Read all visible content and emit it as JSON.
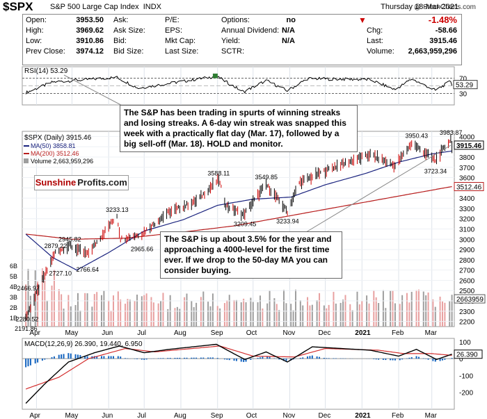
{
  "header": {
    "symbol": "$SPX",
    "name": "S&P 500 Large Cap Index",
    "exchange": "INDX",
    "copyright": "@ StockCharts.com",
    "date": "Thursday  18-Mar-2021",
    "pct_change": "-1.48%"
  },
  "quote": {
    "col1": [
      {
        "label": "Open:",
        "value": "3953.50"
      },
      {
        "label": "High:",
        "value": "3969.62"
      },
      {
        "label": "Low:",
        "value": "3910.86"
      },
      {
        "label": "Prev Close:",
        "value": "3974.12"
      }
    ],
    "col2": [
      {
        "label": "Ask:",
        "value": ""
      },
      {
        "label": "Ask Size:",
        "value": ""
      },
      {
        "label": "Bid:",
        "value": ""
      },
      {
        "label": "Bid Size:",
        "value": ""
      }
    ],
    "col3": [
      {
        "label": "P/E:",
        "value": ""
      },
      {
        "label": "EPS:",
        "value": ""
      },
      {
        "label": "Mkt Cap:",
        "value": ""
      },
      {
        "label": "Last Size:",
        "value": ""
      }
    ],
    "col4": [
      {
        "label": "Options:",
        "value": "no"
      },
      {
        "label": "Annual Dividend:",
        "value": "N/A"
      },
      {
        "label": "Yield:",
        "value": "N/A"
      },
      {
        "label": "SCTR:",
        "value": ""
      }
    ],
    "col5": [
      {
        "label": "Chg:",
        "value": "-58.66"
      },
      {
        "label": "Last:",
        "value": "3915.46"
      },
      {
        "label": "Volume:",
        "value": "2,663,959,296"
      }
    ]
  },
  "annotations": {
    "top": "The S&P has been trading in spurts of winning streaks and losing streaks. A 6-day win streak was snapped this week with a practically flat day (Mar. 17), followed by a big sell-off (Mar. 18). HOLD and monitor.",
    "bottom": "The S&P is up about 3.5% for the year and approaching a 4000-level for the first time ever. If we drop to the 50-day MA you can consider buying."
  },
  "logo": {
    "part1": "Sunshine",
    "part2": "Profits.com"
  },
  "colors": {
    "up": "#000000",
    "down": "#cc0000",
    "ma50": "#1a237e",
    "ma200": "#b71c1c",
    "volume_up": "#9e9e9e",
    "volume_down": "#e8a0a0",
    "macd": "#000000",
    "signal": "#d32f2f",
    "histogram": "#1565c0",
    "rsi": "#000000",
    "rsi_fill_over": "#2e7d32"
  },
  "chart_data": [
    {
      "type": "line",
      "title": "RSI(14) 53.29",
      "legend": [
        {
          "name": "RSI(14) 53.29"
        }
      ],
      "ylim": [
        0,
        100
      ],
      "reference_lines": [
        70,
        30
      ],
      "yticks": [
        70,
        30
      ],
      "last_value_label": "53.29",
      "key_points": [
        {
          "date": "2020-03-23",
          "value": 32
        },
        {
          "date": "2020-04-15",
          "value": 60
        },
        {
          "date": "2020-06-08",
          "value": 72
        },
        {
          "date": "2020-06-26",
          "value": 44
        },
        {
          "date": "2020-08-31",
          "value": 75
        },
        {
          "date": "2020-09-23",
          "value": 34
        },
        {
          "date": "2020-10-12",
          "value": 64
        },
        {
          "date": "2020-10-30",
          "value": 37
        },
        {
          "date": "2020-11-16",
          "value": 69
        },
        {
          "date": "2021-01-08",
          "value": 66
        },
        {
          "date": "2021-01-29",
          "value": 40
        },
        {
          "date": "2021-02-12",
          "value": 68
        },
        {
          "date": "2021-03-04",
          "value": 38
        },
        {
          "date": "2021-03-17",
          "value": 62
        },
        {
          "date": "2021-03-18",
          "value": 53.29
        }
      ]
    },
    {
      "type": "line",
      "title": "$SPX (Daily) 3915.46",
      "legend": [
        {
          "name": "$SPX (Daily) 3915.46"
        },
        {
          "name": "MA(50) 3858.81"
        },
        {
          "name": "MA(200) 3512.46"
        },
        {
          "name": "Volume 2,663,959,296"
        }
      ],
      "ylim": [
        2150,
        4050
      ],
      "yticks": [
        2200,
        2300,
        2400,
        2500,
        2600,
        2700,
        2800,
        2900,
        3000,
        3100,
        3200,
        3300,
        3400,
        3500,
        3600,
        3700,
        3800,
        3900,
        4000
      ],
      "volume_axis_labels": [
        "6B",
        "5B",
        "4B",
        "3B",
        "2B",
        "1B"
      ],
      "x_labels": [
        "Apr",
        "May",
        "Jun",
        "Jul",
        "Aug",
        "Sep",
        "Oct",
        "Nov",
        "Dec",
        "2021",
        "Feb",
        "Mar"
      ],
      "price_labels": [
        {
          "text": "3983.87",
          "date": "2021-03-17",
          "value": 3983.87
        },
        {
          "text": "3950.43",
          "date": "2021-02-16",
          "value": 3950.43
        },
        {
          "text": "3723.34",
          "date": "2021-03-04",
          "value": 3723.34
        },
        {
          "text": "3588.11",
          "date": "2020-09-02",
          "value": 3588.11
        },
        {
          "text": "3549.85",
          "date": "2020-10-12",
          "value": 3549.85
        },
        {
          "text": "3209.45",
          "date": "2020-09-24",
          "value": 3209.45
        },
        {
          "text": "3233.94",
          "date": "2020-10-30",
          "value": 3233.94
        },
        {
          "text": "3233.13",
          "date": "2020-06-08",
          "value": 3233.13
        },
        {
          "text": "2945.82",
          "date": "2020-04-29",
          "value": 2945.82
        },
        {
          "text": "2965.66",
          "date": "2020-06-29",
          "value": 2965.66
        },
        {
          "text": "2879.22",
          "date": "2020-04-17",
          "value": 2879.22
        },
        {
          "text": "2766.64",
          "date": "2020-05-14",
          "value": 2766.64
        },
        {
          "text": "2727.10",
          "date": "2020-04-21",
          "value": 2727.1
        },
        {
          "text": "2466.97",
          "date": "2020-03-25",
          "value": 2466.97
        },
        {
          "text": "2280.52",
          "date": "2020-03-24",
          "value": 2280.52
        },
        {
          "text": "2191.86",
          "date": "2020-03-23",
          "value": 2191.86
        }
      ],
      "axis_value_tags": [
        "3915.46",
        "3512.46",
        "2663959"
      ],
      "series": [
        {
          "name": "$SPX",
          "points": [
            {
              "date": "2020-03-23",
              "value": 2237
            },
            {
              "date": "2020-04-01",
              "value": 2470
            },
            {
              "date": "2020-04-17",
              "value": 2874
            },
            {
              "date": "2020-04-29",
              "value": 2939
            },
            {
              "date": "2020-05-14",
              "value": 2852
            },
            {
              "date": "2020-06-08",
              "value": 3232
            },
            {
              "date": "2020-06-11",
              "value": 3002
            },
            {
              "date": "2020-06-29",
              "value": 3053
            },
            {
              "date": "2020-07-20",
              "value": 3251
            },
            {
              "date": "2020-08-14",
              "value": 3372
            },
            {
              "date": "2020-09-02",
              "value": 3580
            },
            {
              "date": "2020-09-08",
              "value": 3331
            },
            {
              "date": "2020-09-23",
              "value": 3237
            },
            {
              "date": "2020-10-12",
              "value": 3534
            },
            {
              "date": "2020-10-30",
              "value": 3270
            },
            {
              "date": "2020-11-09",
              "value": 3550
            },
            {
              "date": "2020-12-08",
              "value": 3702
            },
            {
              "date": "2021-01-08",
              "value": 3824
            },
            {
              "date": "2021-01-29",
              "value": 3714
            },
            {
              "date": "2021-02-12",
              "value": 3934
            },
            {
              "date": "2021-03-04",
              "value": 3768
            },
            {
              "date": "2021-03-17",
              "value": 3974
            },
            {
              "date": "2021-03-18",
              "value": 3915.46
            }
          ]
        },
        {
          "name": "MA(50)",
          "points": [
            {
              "date": "2020-03-23",
              "value": 3050
            },
            {
              "date": "2020-04-15",
              "value": 2820
            },
            {
              "date": "2020-05-05",
              "value": 2700
            },
            {
              "date": "2020-06-01",
              "value": 2870
            },
            {
              "date": "2020-07-01",
              "value": 3080
            },
            {
              "date": "2020-08-03",
              "value": 3190
            },
            {
              "date": "2020-09-01",
              "value": 3330
            },
            {
              "date": "2020-10-01",
              "value": 3390
            },
            {
              "date": "2020-11-02",
              "value": 3410
            },
            {
              "date": "2020-12-01",
              "value": 3530
            },
            {
              "date": "2021-01-04",
              "value": 3640
            },
            {
              "date": "2021-02-01",
              "value": 3750
            },
            {
              "date": "2021-03-01",
              "value": 3830
            },
            {
              "date": "2021-03-18",
              "value": 3858.81
            }
          ]
        },
        {
          "name": "MA(200)",
          "points": [
            {
              "date": "2020-03-23",
              "value": 3050
            },
            {
              "date": "2020-05-01",
              "value": 3000
            },
            {
              "date": "2020-06-15",
              "value": 3010
            },
            {
              "date": "2020-08-03",
              "value": 3070
            },
            {
              "date": "2020-09-15",
              "value": 3130
            },
            {
              "date": "2020-11-02",
              "value": 3230
            },
            {
              "date": "2020-12-15",
              "value": 3320
            },
            {
              "date": "2021-02-01",
              "value": 3420
            },
            {
              "date": "2021-03-18",
              "value": 3512.46
            }
          ]
        }
      ]
    },
    {
      "type": "line",
      "title": "MACD(12,26,9) 26.390, 19.440, 6.950",
      "legend": [
        {
          "name": "MACD(12,26,9) 26.390, 19.440, 6.950"
        }
      ],
      "ylim": [
        -300,
        120
      ],
      "yticks": [
        100,
        0,
        -100,
        -200
      ],
      "last_value_label": "26.390",
      "x_labels": [
        "Apr",
        "May",
        "Jun",
        "Jul",
        "Aug",
        "Sep",
        "Oct",
        "Nov",
        "Dec",
        "2021",
        "Feb",
        "Mar"
      ],
      "series": [
        {
          "name": "MACD",
          "points": [
            {
              "date": "2020-03-23",
              "value": -265
            },
            {
              "date": "2020-04-08",
              "value": -150
            },
            {
              "date": "2020-04-28",
              "value": -20
            },
            {
              "date": "2020-05-20",
              "value": 35
            },
            {
              "date": "2020-06-10",
              "value": 75
            },
            {
              "date": "2020-07-01",
              "value": 35
            },
            {
              "date": "2020-07-22",
              "value": 55
            },
            {
              "date": "2020-08-31",
              "value": 85
            },
            {
              "date": "2020-09-24",
              "value": -5
            },
            {
              "date": "2020-10-12",
              "value": 40
            },
            {
              "date": "2020-10-30",
              "value": -20
            },
            {
              "date": "2020-11-20",
              "value": 70
            },
            {
              "date": "2020-12-15",
              "value": 60
            },
            {
              "date": "2021-01-08",
              "value": 50
            },
            {
              "date": "2021-02-01",
              "value": 15
            },
            {
              "date": "2021-02-16",
              "value": 55
            },
            {
              "date": "2021-03-05",
              "value": -5
            },
            {
              "date": "2021-03-18",
              "value": 26.39
            }
          ]
        },
        {
          "name": "Signal",
          "points": [
            {
              "date": "2020-03-23",
              "value": -180
            },
            {
              "date": "2020-04-20",
              "value": -110
            },
            {
              "date": "2020-05-15",
              "value": 0
            },
            {
              "date": "2020-06-15",
              "value": 60
            },
            {
              "date": "2020-07-10",
              "value": 40
            },
            {
              "date": "2020-09-03",
              "value": 75
            },
            {
              "date": "2020-10-01",
              "value": 15
            },
            {
              "date": "2020-11-05",
              "value": 10
            },
            {
              "date": "2020-12-01",
              "value": 60
            },
            {
              "date": "2021-01-15",
              "value": 50
            },
            {
              "date": "2021-02-05",
              "value": 30
            },
            {
              "date": "2021-03-01",
              "value": 30
            },
            {
              "date": "2021-03-18",
              "value": 19.44
            }
          ]
        }
      ]
    }
  ]
}
